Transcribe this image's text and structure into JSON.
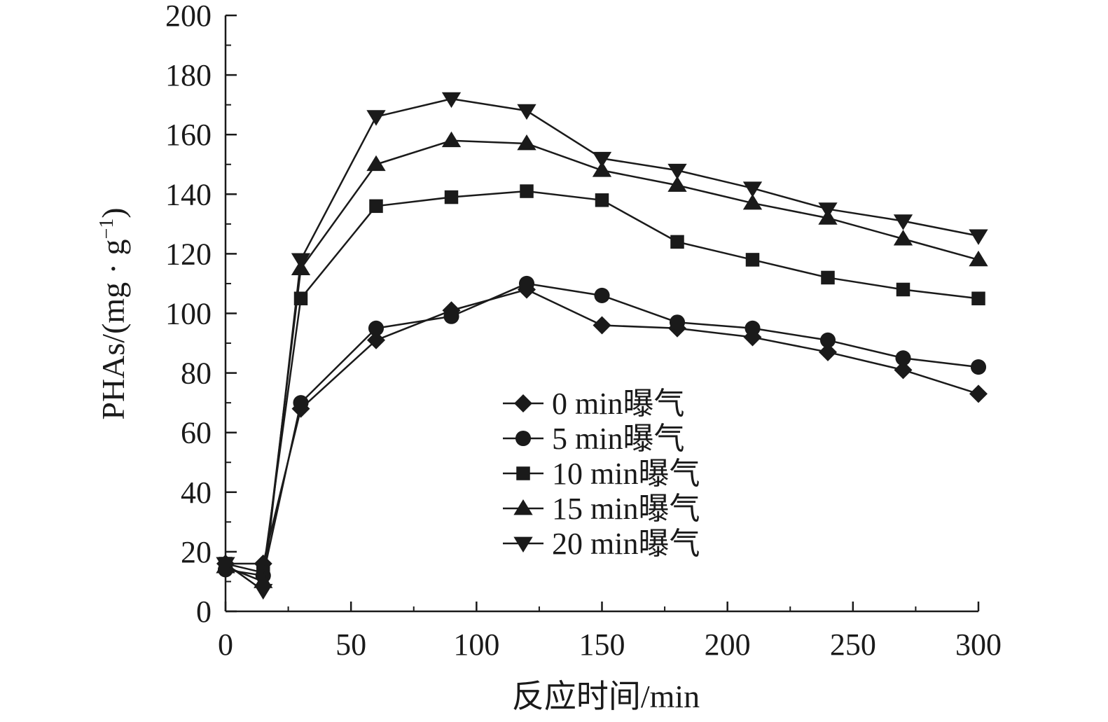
{
  "chart_data": {
    "type": "line",
    "xlabel": "反应时间/min",
    "ylabel_main": "PHAs/(mg · g",
    "ylabel_sup": "−1",
    "ylabel_close": ")",
    "xlim": [
      0,
      300
    ],
    "ylim": [
      0,
      200
    ],
    "xticks": [
      0,
      50,
      100,
      150,
      200,
      250,
      300
    ],
    "yticks": [
      0,
      20,
      40,
      60,
      80,
      100,
      120,
      140,
      160,
      180,
      200
    ],
    "x": [
      0,
      15,
      30,
      60,
      90,
      120,
      150,
      180,
      210,
      240,
      270,
      300
    ],
    "legend_position": "center",
    "color": "#1a1a1a",
    "series": [
      {
        "name": "0 min曝气",
        "marker": "diamond",
        "values": [
          16,
          16,
          68,
          91,
          101,
          108,
          96,
          95,
          92,
          87,
          81,
          73
        ]
      },
      {
        "name": "5 min曝气",
        "marker": "circle",
        "values": [
          14,
          12,
          70,
          95,
          99,
          110,
          106,
          97,
          95,
          91,
          85,
          82
        ]
      },
      {
        "name": "10 min曝气",
        "marker": "square",
        "values": [
          16,
          13,
          105,
          136,
          139,
          141,
          138,
          124,
          118,
          112,
          108,
          105
        ]
      },
      {
        "name": "15 min曝气",
        "marker": "triangle-up",
        "values": [
          15,
          10,
          115,
          150,
          158,
          157,
          148,
          143,
          137,
          132,
          125,
          118
        ]
      },
      {
        "name": "20 min曝气",
        "marker": "triangle-down",
        "values": [
          16,
          7,
          118,
          166,
          172,
          168,
          152,
          148,
          142,
          135,
          131,
          126
        ]
      }
    ]
  }
}
